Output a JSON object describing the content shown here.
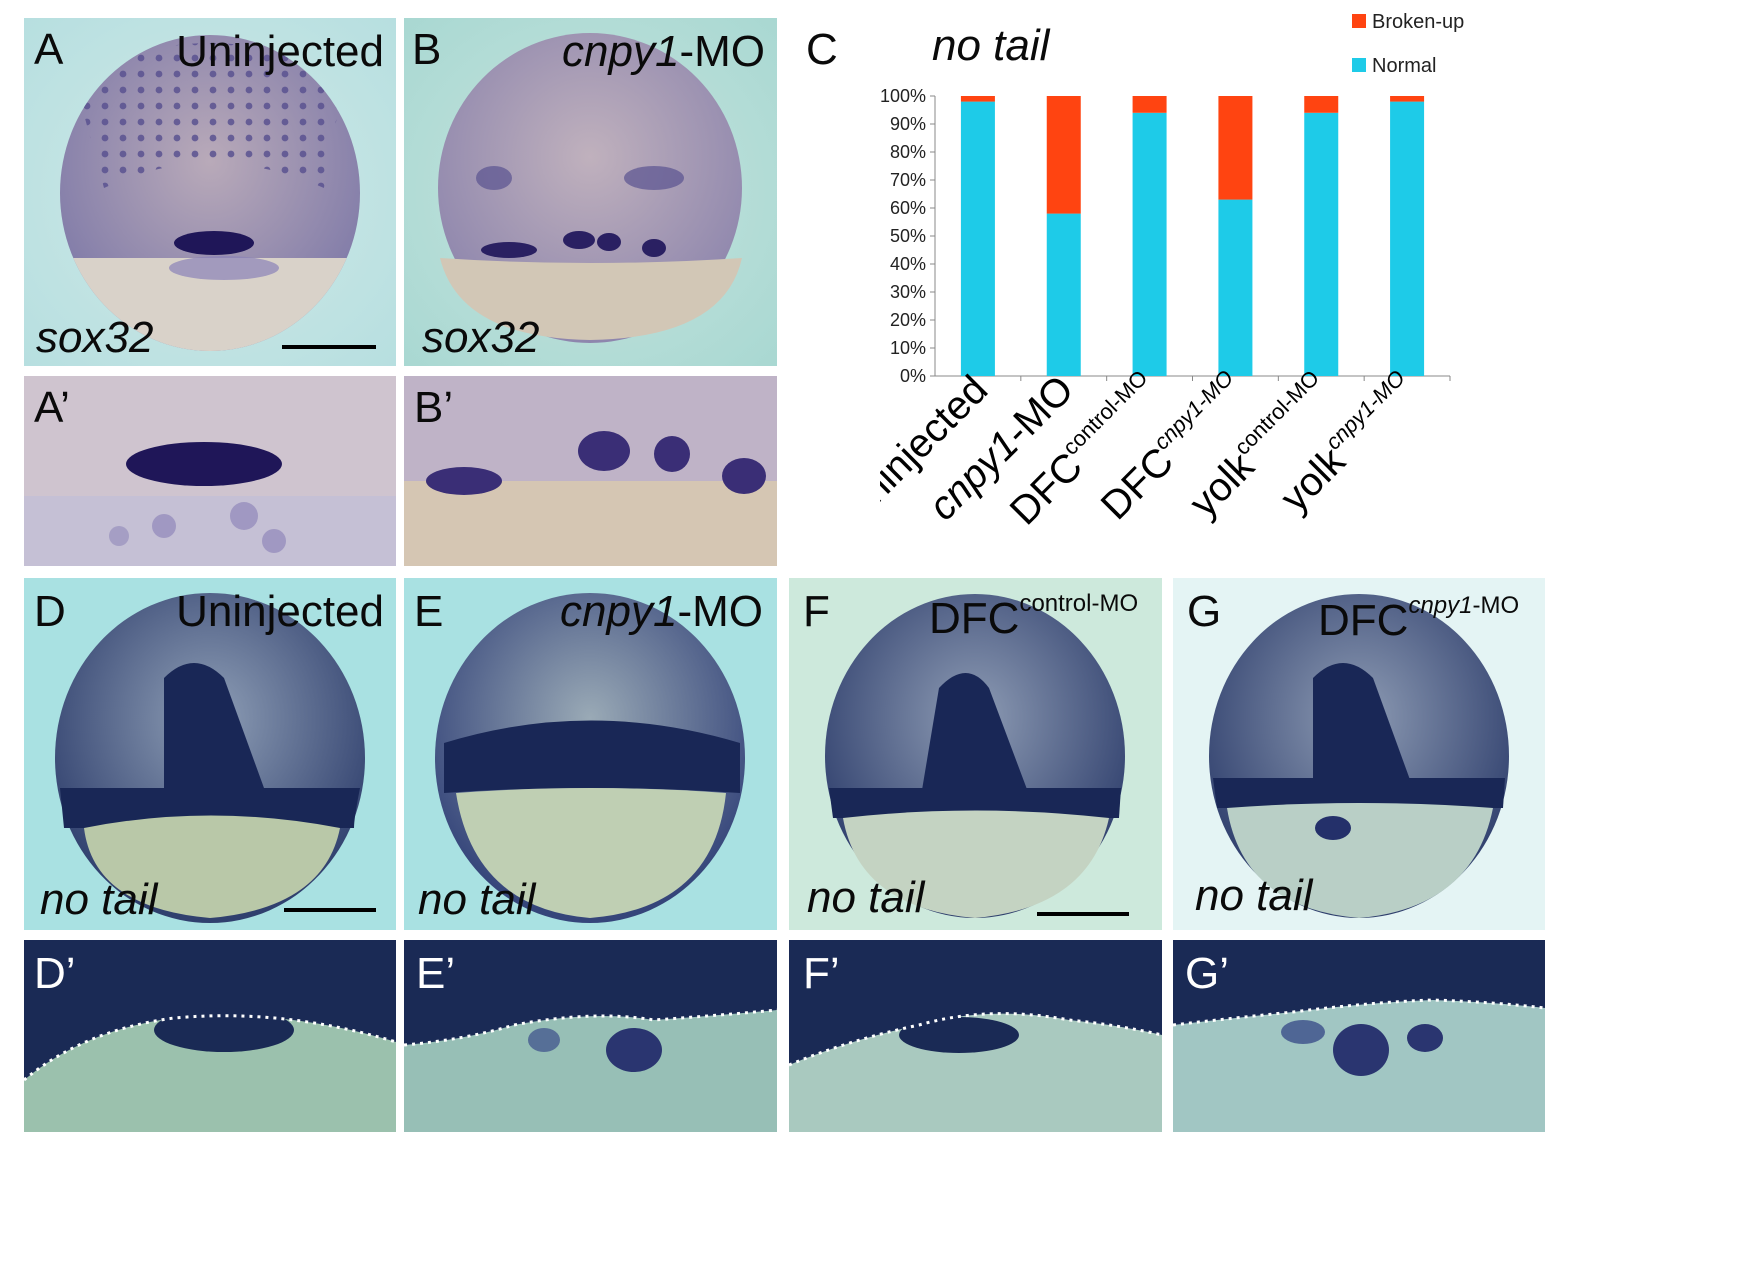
{
  "panels": {
    "A": {
      "label": "A",
      "title": "Uninjected",
      "probe": "sox32"
    },
    "B": {
      "label": "B",
      "title_italic": "cnpy1",
      "title_rest": "-MO",
      "probe": "sox32"
    },
    "A2": {
      "label": "A’"
    },
    "B2": {
      "label": "B’"
    },
    "D": {
      "label": "D",
      "title": "Uninjected",
      "probe": "no tail"
    },
    "E": {
      "label": "E",
      "title_italic": "cnpy1",
      "title_rest": "-MO",
      "probe": "no tail"
    },
    "F": {
      "label": "F",
      "title_main": "DFC",
      "title_sup": "control-MO",
      "probe": "no tail"
    },
    "G": {
      "label": "G",
      "title_main": "DFC",
      "title_sup_italic": "cnpy1",
      "title_sup_rest": "-MO",
      "probe": "no tail"
    },
    "D2": {
      "label": "D’"
    },
    "E2": {
      "label": "E’"
    },
    "F2": {
      "label": "F’"
    },
    "G2": {
      "label": "G’"
    }
  },
  "chart_panel": {
    "label": "C",
    "title": "no tail"
  },
  "chart_data": {
    "type": "bar",
    "stacked": true,
    "categories": [
      "Uninjected",
      "cnpy1-MO",
      "DFC control-MO",
      "DFC cnpy1-MO",
      "yolk control-MO",
      "yolk cnpy1-MO"
    ],
    "category_labels": [
      {
        "main": "Uninjected",
        "sup": ""
      },
      {
        "main_italic": "cnpy1",
        "main": "-MO",
        "sup": ""
      },
      {
        "main": "DFC",
        "sup": "control-MO"
      },
      {
        "main": "DFC",
        "sup": "cnpy1-MO"
      },
      {
        "main": "yolk",
        "sup": "control-MO"
      },
      {
        "main": "yolk",
        "sup": "cnpy1-MO"
      }
    ],
    "series": [
      {
        "name": "Normal",
        "color": "#1ecbe8",
        "values": [
          98,
          58,
          94,
          63,
          94,
          98
        ]
      },
      {
        "name": "Broken-up",
        "color": "#ff4411",
        "values": [
          2,
          42,
          6,
          37,
          6,
          2
        ]
      }
    ],
    "ylim": [
      0,
      100
    ],
    "yticks": [
      "0%",
      "10%",
      "20%",
      "30%",
      "40%",
      "50%",
      "60%",
      "70%",
      "80%",
      "90%",
      "100%"
    ],
    "legend_position": "top-right",
    "grid": false
  }
}
